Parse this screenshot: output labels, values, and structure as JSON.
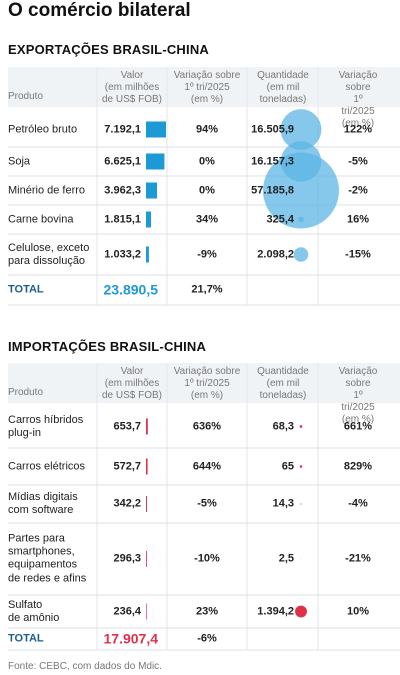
{
  "title": "O comércio bilateral",
  "source": "Fonte: CEBC, com dados do Mdic.",
  "sections": [
    {
      "heading": "EXPORTAÇÕES BRASIL-CHINA",
      "color": "#1d9ad6",
      "bubble_color": "#5cb6e6",
      "columns": [
        "Produto",
        "Valor\n(em milhões\nde US$ FOB)",
        "Variação sobre\n1º tri/2025\n(em %)",
        "Quantidade\n(em mil\ntoneladas)",
        "Variação sobre\n1º tri/2025\n(em %)"
      ],
      "rows": [
        {
          "product": "Petróleo bruto",
          "value": {
            "value": 7192.1,
            "label": "7.192,1"
          },
          "change_value": "94%",
          "quantity": {
            "value": 16505.9,
            "label": "16.505,9"
          },
          "change_quantity": "122%"
        },
        {
          "product": "Soja",
          "value": {
            "value": 6625.1,
            "label": "6.625,1"
          },
          "change_value": "0%",
          "quantity": {
            "value": 16157.3,
            "label": "16.157,3"
          },
          "change_quantity": "-5%"
        },
        {
          "product": "Minério de ferro",
          "value": {
            "value": 3962.3,
            "label": "3.962,3"
          },
          "change_value": "0%",
          "quantity": {
            "value": 57185.8,
            "label": "57.185,8"
          },
          "change_quantity": "-2%"
        },
        {
          "product": "Carne bovina",
          "value": {
            "value": 1815.1,
            "label": "1.815,1"
          },
          "change_value": "34%",
          "quantity": {
            "value": 325.4,
            "label": "325,4"
          },
          "change_quantity": "16%"
        },
        {
          "product": "Celulose, exceto\npara dissolução",
          "value": {
            "value": 1033.2,
            "label": "1.033,2"
          },
          "change_value": "-9%",
          "quantity": {
            "value": 2098.2,
            "label": "2.098,2"
          },
          "change_quantity": "-15%"
        }
      ],
      "total": {
        "label": "TOTAL",
        "value": "23.890,5",
        "change_value": "21,7%"
      }
    },
    {
      "heading": "IMPORTAÇÕES BRASIL-CHINA",
      "color": "#e0314b",
      "bubble_color": "#e0314b",
      "columns": [
        "Produto",
        "Valor\n(em milhões\nde US$ FOB)",
        "Variação sobre\n1º tri/2025\n(em %)",
        "Quantidade\n(em mil\ntoneladas)",
        "Variação sobre\n1º tri/2025\n(em %)"
      ],
      "rows": [
        {
          "product": "Carros híbridos\nplug-in",
          "value": {
            "value": 653.7,
            "label": "653,7"
          },
          "change_value": "636%",
          "quantity": {
            "value": 68.3,
            "label": "68,3"
          },
          "change_quantity": "661%"
        },
        {
          "product": "Carros elétricos",
          "value": {
            "value": 572.7,
            "label": "572,7"
          },
          "change_value": "644%",
          "quantity": {
            "value": 65,
            "label": "65"
          },
          "change_quantity": "829%"
        },
        {
          "product": "Mídias digitais\ncom software",
          "value": {
            "value": 342.2,
            "label": "342,2"
          },
          "change_value": "-5%",
          "quantity": {
            "value": 14.3,
            "label": "14,3"
          },
          "change_quantity": "-4%"
        },
        {
          "product": "Partes para\nsmartphones,\nequipamentos\nde redes e afins",
          "value": {
            "value": 296.3,
            "label": "296,3"
          },
          "change_value": "-10%",
          "quantity": {
            "value": 2.5,
            "label": "2,5"
          },
          "change_quantity": "-21%"
        },
        {
          "product": "Sulfato\nde amônio",
          "value": {
            "value": 236.4,
            "label": "236,4"
          },
          "change_value": "23%",
          "quantity": {
            "value": 1394.2,
            "label": "1.394,2"
          },
          "change_quantity": "10%"
        }
      ],
      "total": {
        "label": "TOTAL",
        "value": "17.907,4",
        "change_value": "-6%"
      }
    }
  ]
}
